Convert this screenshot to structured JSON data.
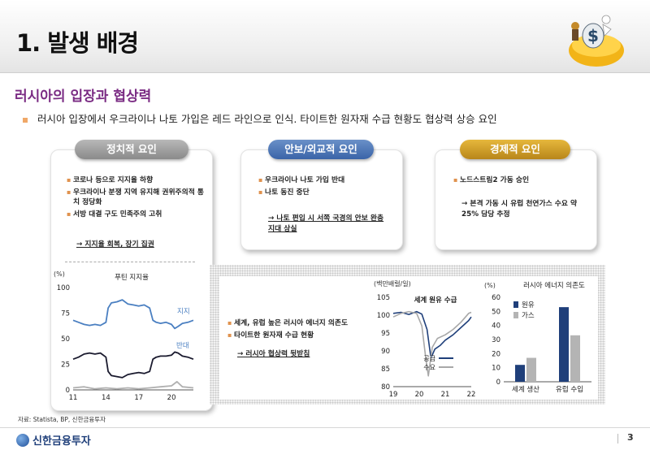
{
  "header": {
    "title": "1. 발생 배경"
  },
  "section": {
    "title": "러시아의 입장과 협상력",
    "bullet": "러시아 입장에서 우크라이나 나토 가입은 레드 라인으로 인식. 타이트한 원자재 수급 현황도 협상력 상승 요인"
  },
  "political": {
    "label": "정치적 요인",
    "items": [
      "코로나 등으로 지지율 하향",
      "우크라이나 분쟁 지역 유지해 권위주의적 통치 정당화",
      "서방 대결 구도 민족주의 고취"
    ],
    "conclusion": "→ 지지율 회복, 장기 집권"
  },
  "security": {
    "label": "안보/외교적 요인",
    "items": [
      "우크라이나 나토 가입 반대",
      "나토 동진 중단"
    ],
    "conclusion": "→ 나토 편입 시 서쪽 국경의 안보 완충지대 상실"
  },
  "economic": {
    "label": "경제적 요인",
    "items": [
      "노드스트림2 가동 승인"
    ],
    "conclusion": "→ 본격 가동 시 유럽 천연가스 수요 약 25% 담당 추정"
  },
  "middle_bullets": {
    "items": [
      "세계, 유럽 높은 러시아 에너지 의존도",
      "타이트한 원자재 수급 현황"
    ],
    "conclusion": "→ 러시아 협상력 뒷받침"
  },
  "chart_data": [
    {
      "type": "line",
      "title": "푸틴 지지율",
      "ylabel": "(%)",
      "ylim": [
        0,
        100
      ],
      "yticks": [
        0,
        25,
        50,
        75,
        100
      ],
      "xticks": [
        "11",
        "14",
        "17",
        "20"
      ],
      "xlim": [
        2011,
        2022
      ],
      "series": [
        {
          "name": "지지",
          "color": "#4a7fc1",
          "x": [
            2011.0,
            2011.5,
            2012.0,
            2012.5,
            2013.0,
            2013.5,
            2014.0,
            2014.2,
            2014.5,
            2015.0,
            2015.5,
            2016.0,
            2016.5,
            2017.0,
            2017.5,
            2018.0,
            2018.3,
            2018.6,
            2019.0,
            2019.5,
            2020.0,
            2020.3,
            2020.6,
            2021.0,
            2021.5,
            2022.0
          ],
          "y": [
            68,
            66,
            64,
            63,
            64,
            63,
            66,
            80,
            85,
            86,
            88,
            84,
            83,
            82,
            83,
            80,
            68,
            66,
            65,
            66,
            64,
            60,
            62,
            65,
            66,
            68
          ]
        },
        {
          "name": "반대",
          "color": "#1a1a2e",
          "x": [
            2011.0,
            2011.5,
            2012.0,
            2012.5,
            2013.0,
            2013.5,
            2014.0,
            2014.2,
            2014.5,
            2015.0,
            2015.5,
            2016.0,
            2016.5,
            2017.0,
            2017.5,
            2018.0,
            2018.3,
            2018.6,
            2019.0,
            2019.5,
            2020.0,
            2020.3,
            2020.6,
            2021.0,
            2021.5,
            2022.0
          ],
          "y": [
            30,
            32,
            35,
            36,
            35,
            36,
            32,
            18,
            14,
            13,
            12,
            15,
            16,
            17,
            16,
            18,
            30,
            32,
            33,
            33,
            34,
            37,
            36,
            33,
            32,
            30
          ]
        },
        {
          "name": "",
          "color": "#b0b0b0",
          "x": [
            2011.0,
            2012.0,
            2013.0,
            2014.0,
            2015.0,
            2016.0,
            2017.0,
            2018.0,
            2019.0,
            2020.0,
            2020.5,
            2021.0,
            2022.0
          ],
          "y": [
            2,
            3,
            1,
            2,
            1,
            2,
            1,
            2,
            3,
            4,
            8,
            3,
            2
          ]
        }
      ],
      "annotations": [
        "지지",
        "반대"
      ]
    },
    {
      "type": "line",
      "title": "세계 원유 수급",
      "ylabel": "(백만배럴/일)",
      "ylim": [
        80,
        105
      ],
      "yticks": [
        80,
        85,
        90,
        95,
        100,
        105
      ],
      "xticks": [
        "19",
        "20",
        "21",
        "22"
      ],
      "xlim": [
        2019,
        2022
      ],
      "series": [
        {
          "name": "공급",
          "color": "#1f3f7a",
          "x": [
            2019.0,
            2019.3,
            2019.6,
            2019.9,
            2020.1,
            2020.3,
            2020.45,
            2020.6,
            2020.8,
            2021.0,
            2021.3,
            2021.6,
            2021.9,
            2022.0
          ],
          "y": [
            100.5,
            100.8,
            100.2,
            101.0,
            100.3,
            96.0,
            88.0,
            90.5,
            91.5,
            93.0,
            94.5,
            96.5,
            98.5,
            99.5
          ]
        },
        {
          "name": "수요",
          "color": "#a8a8a8",
          "x": [
            2019.0,
            2019.3,
            2019.6,
            2019.9,
            2020.1,
            2020.25,
            2020.35,
            2020.5,
            2020.7,
            2021.0,
            2021.3,
            2021.6,
            2021.9,
            2022.0
          ],
          "y": [
            99.5,
            100.5,
            101.0,
            100.5,
            97.0,
            88.0,
            83.0,
            91.0,
            93.5,
            94.5,
            96.0,
            98.0,
            100.5,
            100.8
          ]
        }
      ]
    },
    {
      "type": "bar",
      "title": "러시아 에너지 의존도",
      "ylabel": "(%)",
      "ylim": [
        0,
        60
      ],
      "yticks": [
        0,
        10,
        20,
        30,
        40,
        50,
        60
      ],
      "categories": [
        "세계 생산",
        "유럽 수입"
      ],
      "series": [
        {
          "name": "원유",
          "color": "#1f3f7a",
          "values": [
            12,
            53
          ]
        },
        {
          "name": "가스",
          "color": "#b4b4b4",
          "values": [
            17,
            33
          ]
        }
      ]
    }
  ],
  "footer": {
    "source": "자료: Statista, BP, 신한금융투자",
    "brand": "신한금융투자",
    "page": "3"
  }
}
